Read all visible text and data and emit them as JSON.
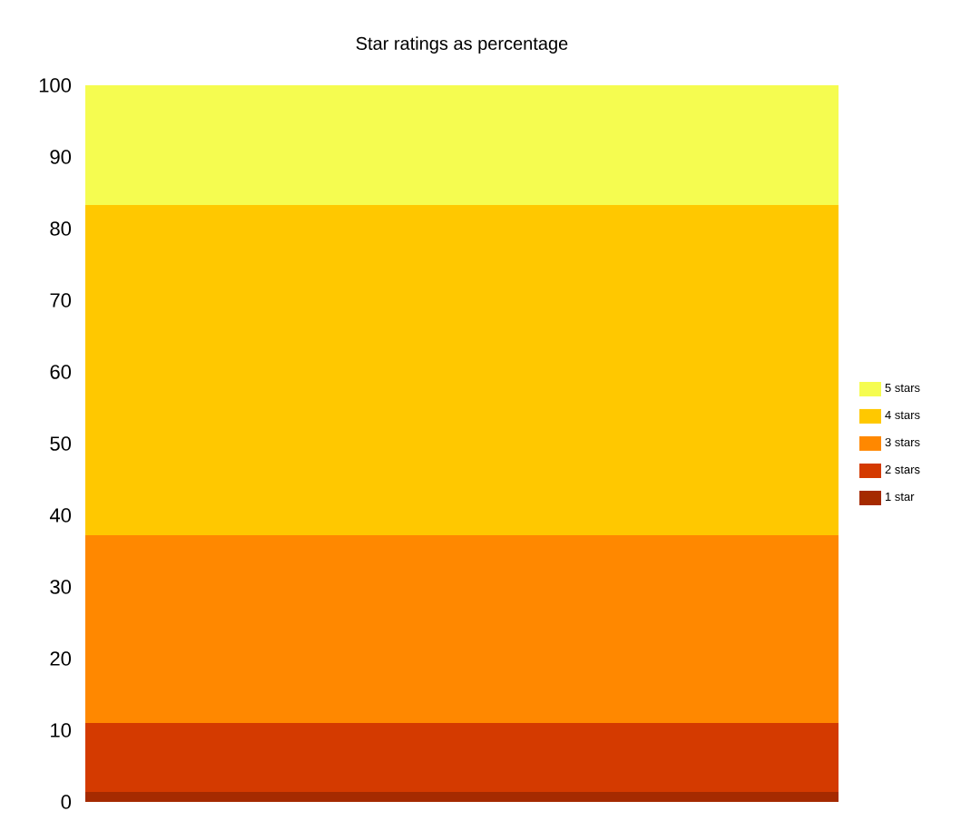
{
  "chart_data": {
    "type": "bar",
    "title": "Star ratings as percentage",
    "stacked": true,
    "categories": [
      null
    ],
    "series": [
      {
        "name": "1 star",
        "color": "#a52a00",
        "values": [
          1.4
        ]
      },
      {
        "name": "2 stars",
        "color": "#d43a00",
        "values": [
          9.6
        ]
      },
      {
        "name": "3 stars",
        "color": "#ff8800",
        "values": [
          26.2
        ]
      },
      {
        "name": "4 stars",
        "color": "#ffc800",
        "values": [
          46.1
        ]
      },
      {
        "name": "5 stars",
        "color": "#f5fc50",
        "values": [
          16.7
        ]
      }
    ],
    "ylim": [
      0,
      100
    ],
    "yticks": [
      0,
      10,
      20,
      30,
      40,
      50,
      60,
      70,
      80,
      90,
      100
    ],
    "grid": false,
    "legend": "right"
  }
}
